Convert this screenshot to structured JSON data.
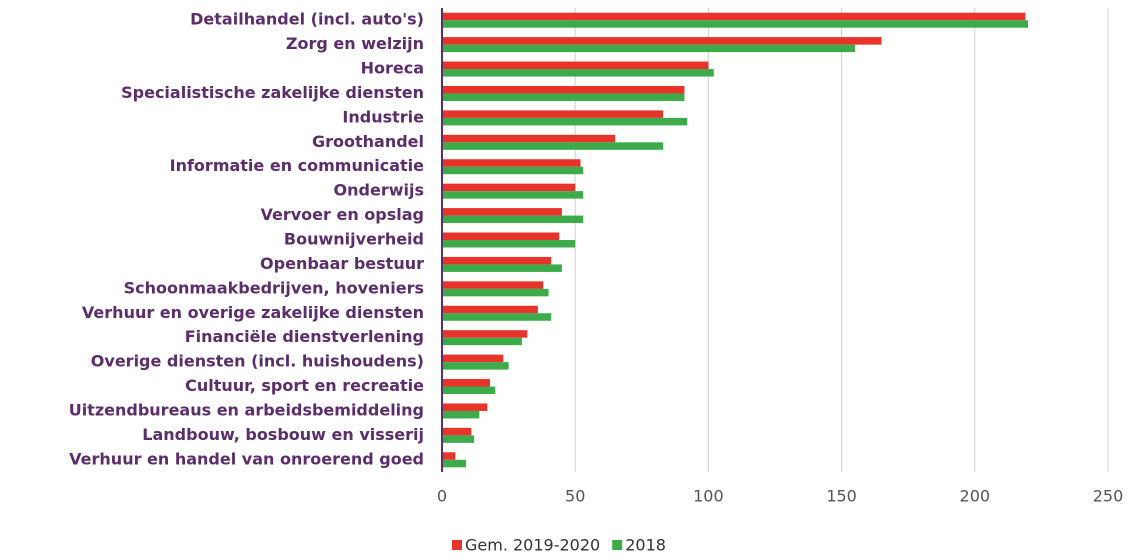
{
  "chart_data": {
    "type": "bar",
    "orientation": "horizontal",
    "categories": [
      "Detailhandel (incl. auto's)",
      "Zorg en welzijn",
      "Horeca",
      "Specialistische zakelijke diensten",
      "Industrie",
      "Groothandel",
      "Informatie en communicatie",
      "Onderwijs",
      "Vervoer en opslag",
      "Bouwnijverheid",
      "Openbaar bestuur",
      "Schoonmaakbedrijven, hoveniers",
      "Verhuur en overige zakelijke diensten",
      "Financiële dienstverlening",
      "Overige diensten (incl. huishoudens)",
      "Cultuur, sport en recreatie",
      "Uitzendbureaus en arbeidsbemiddeling",
      "Landbouw, bosbouw en visserij",
      "Verhuur en handel van onroerend goed"
    ],
    "series": [
      {
        "name": "Gem. 2019-2020",
        "color": "#e8332a",
        "values": [
          219,
          165,
          100,
          91,
          83,
          65,
          52,
          50,
          45,
          44,
          41,
          38,
          36,
          32,
          23,
          18,
          17,
          11,
          5
        ]
      },
      {
        "name": "2018",
        "color": "#3dab4a",
        "values": [
          220,
          155,
          102,
          91,
          92,
          83,
          53,
          53,
          53,
          50,
          45,
          40,
          41,
          30,
          25,
          20,
          14,
          12,
          9
        ]
      }
    ],
    "xlim": [
      0,
      250
    ],
    "xticks": [
      0,
      50,
      100,
      150,
      200,
      250
    ],
    "grid": true,
    "legend": "bottom"
  }
}
